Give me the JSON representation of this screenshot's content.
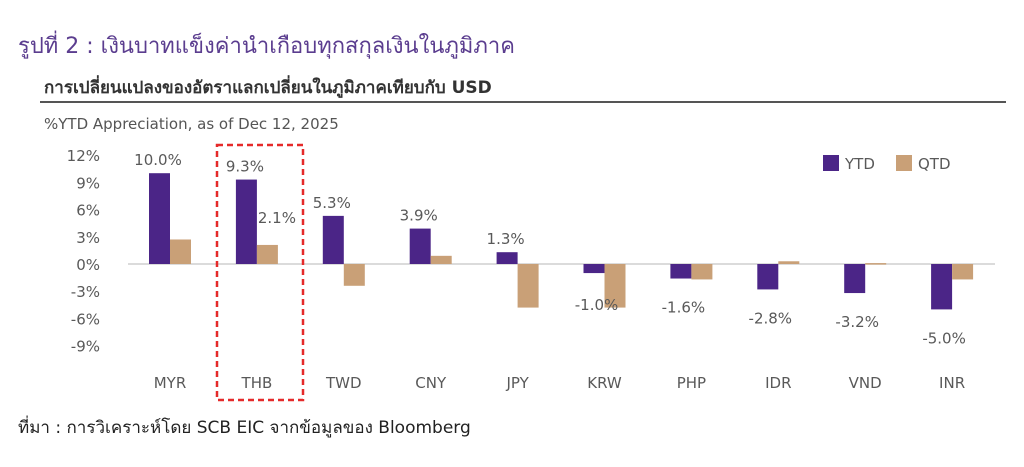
{
  "figure_title": "รูปที่ 2 : เงินบาทแข็งค่านำเกือบทุกสกุลเงินในภูมิภาค",
  "chart_title": "การเปลี่ยนแปลงของอัตราแลกเปลี่ยนในภูมิภาคเทียบกับ USD",
  "subtitle": "%YTD Appreciation, as of Dec 12, 2025",
  "source": "ที่มา : การวิเคราะห์โดย SCB EIC จากข้อมูลของ Bloomberg",
  "colors": {
    "ytd": "#4b2587",
    "qtd": "#c9a077",
    "highlight": "#e52a2a",
    "zero_line": "#cfcfcf"
  },
  "chart_data": {
    "type": "bar",
    "categories": [
      "MYR",
      "THB",
      "TWD",
      "CNY",
      "JPY",
      "KRW",
      "PHP",
      "IDR",
      "VND",
      "INR"
    ],
    "series": [
      {
        "name": "YTD",
        "values": [
          10.0,
          9.3,
          5.3,
          3.9,
          1.3,
          -1.0,
          -1.6,
          -2.8,
          -3.2,
          -5.0
        ]
      },
      {
        "name": "QTD",
        "values": [
          2.7,
          2.1,
          -2.4,
          0.9,
          -4.8,
          -4.8,
          -1.7,
          0.3,
          0.1,
          -1.7
        ]
      }
    ],
    "data_labels": [
      "10.0%",
      "9.3%",
      "5.3%",
      "3.9%",
      "1.3%",
      "-1.0%",
      "-1.6%",
      "-2.8%",
      "-3.2%",
      "-5.0%"
    ],
    "thb_qtd_label": "2.1%",
    "y_ticks": [
      "12%",
      "9%",
      "6%",
      "3%",
      "0%",
      "-3%",
      "-6%",
      "-9%"
    ],
    "y_tick_values": [
      12,
      9,
      6,
      3,
      0,
      -3,
      -6,
      -9
    ],
    "ylim": [
      -9,
      12
    ],
    "legend": [
      "YTD",
      "QTD"
    ],
    "legend_position": "top-right",
    "highlighted_category": "THB",
    "grid": false,
    "xlabel": "",
    "ylabel": ""
  }
}
